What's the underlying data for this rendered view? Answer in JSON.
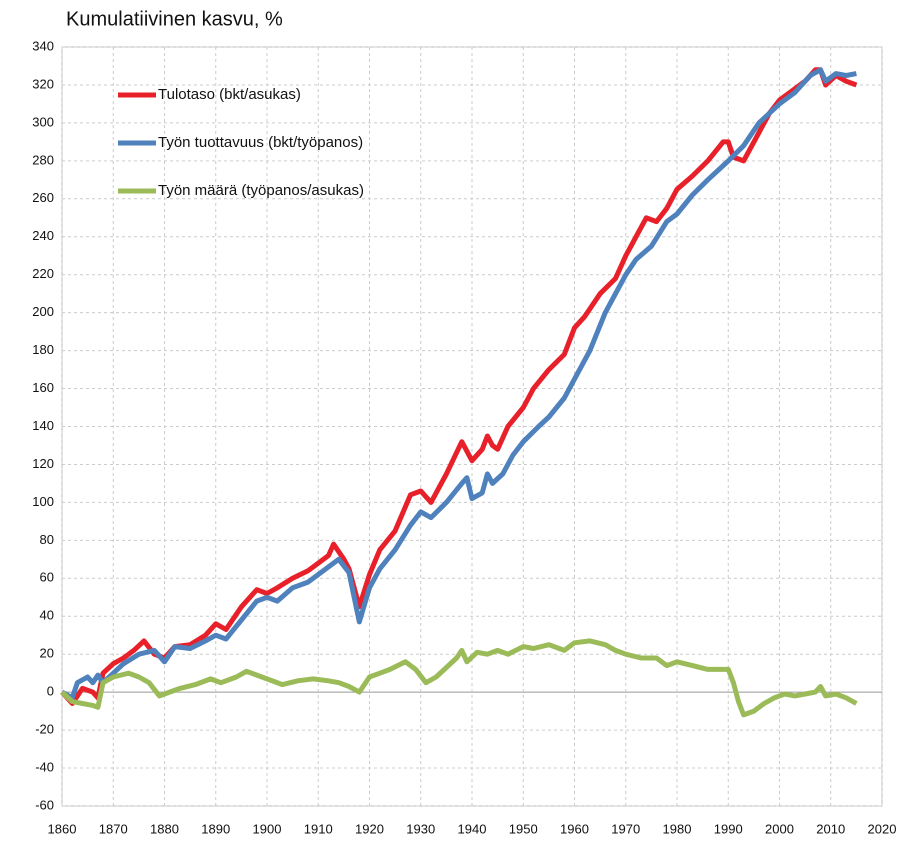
{
  "chart_data": {
    "type": "line",
    "title": "Kumulatiivinen kasvu, %",
    "xlim": [
      1860,
      2020
    ],
    "xticks": [
      1860,
      1870,
      1880,
      1890,
      1900,
      1910,
      1920,
      1930,
      1940,
      1950,
      1960,
      1970,
      1980,
      1990,
      2000,
      2010,
      2020
    ],
    "ylim": [
      -60,
      340
    ],
    "yticks": [
      -60,
      -40,
      -20,
      0,
      20,
      40,
      60,
      80,
      100,
      120,
      140,
      160,
      180,
      200,
      220,
      240,
      260,
      280,
      300,
      320,
      340
    ],
    "grid": true,
    "legend": "upper left",
    "series": [
      {
        "name": "Tulotaso (bkt/asukas)",
        "color": "#e8202a",
        "x": [
          1860,
          1862,
          1864,
          1866,
          1867,
          1868,
          1870,
          1872,
          1874,
          1876,
          1878,
          1880,
          1882,
          1885,
          1888,
          1890,
          1892,
          1895,
          1898,
          1900,
          1902,
          1905,
          1908,
          1910,
          1912,
          1913,
          1915,
          1916,
          1918,
          1920,
          1922,
          1925,
          1928,
          1930,
          1932,
          1935,
          1938,
          1940,
          1942,
          1943,
          1944,
          1945,
          1947,
          1950,
          1952,
          1955,
          1958,
          1960,
          1962,
          1965,
          1968,
          1970,
          1972,
          1974,
          1976,
          1978,
          1980,
          1983,
          1986,
          1989,
          1990,
          1991,
          1993,
          1995,
          1998,
          2000,
          2003,
          2005,
          2007,
          2008,
          2009,
          2011,
          2013,
          2015
        ],
        "values": [
          0,
          -6,
          2,
          0,
          -3,
          10,
          15,
          18,
          22,
          27,
          20,
          18,
          24,
          25,
          30,
          36,
          33,
          45,
          54,
          52,
          55,
          60,
          64,
          68,
          72,
          78,
          70,
          65,
          45,
          62,
          75,
          85,
          104,
          106,
          100,
          115,
          132,
          122,
          128,
          135,
          130,
          128,
          140,
          150,
          160,
          170,
          178,
          192,
          198,
          210,
          218,
          230,
          240,
          250,
          248,
          255,
          265,
          272,
          280,
          290,
          290,
          282,
          280,
          290,
          305,
          312,
          318,
          322,
          328,
          328,
          320,
          325,
          322,
          320
        ]
      },
      {
        "name": "Työn tuottavuus (bkt/työpanos)",
        "color": "#4f81bd",
        "x": [
          1860,
          1862,
          1863,
          1865,
          1866,
          1867,
          1868,
          1870,
          1872,
          1875,
          1878,
          1880,
          1882,
          1885,
          1888,
          1890,
          1892,
          1895,
          1898,
          1900,
          1902,
          1905,
          1908,
          1910,
          1912,
          1914,
          1916,
          1918,
          1920,
          1922,
          1925,
          1928,
          1930,
          1932,
          1935,
          1938,
          1939,
          1940,
          1942,
          1943,
          1944,
          1946,
          1948,
          1950,
          1953,
          1955,
          1958,
          1960,
          1963,
          1966,
          1970,
          1972,
          1975,
          1978,
          1980,
          1983,
          1986,
          1990,
          1993,
          1996,
          2000,
          2003,
          2006,
          2008,
          2009,
          2011,
          2013,
          2015
        ],
        "values": [
          0,
          -3,
          5,
          8,
          5,
          9,
          5,
          10,
          15,
          20,
          22,
          16,
          24,
          23,
          27,
          30,
          28,
          38,
          48,
          50,
          48,
          55,
          58,
          62,
          66,
          70,
          63,
          37,
          55,
          65,
          75,
          88,
          95,
          92,
          100,
          110,
          113,
          102,
          105,
          115,
          110,
          115,
          125,
          132,
          140,
          145,
          155,
          165,
          180,
          200,
          220,
          228,
          235,
          248,
          252,
          262,
          270,
          280,
          288,
          300,
          310,
          316,
          325,
          328,
          322,
          326,
          325,
          326
        ]
      },
      {
        "name": "Työn määrä (työpanos/asukas)",
        "color": "#9bbb59",
        "x": [
          1860,
          1862,
          1864,
          1866,
          1867,
          1868,
          1870,
          1873,
          1875,
          1877,
          1879,
          1881,
          1883,
          1886,
          1889,
          1891,
          1894,
          1896,
          1898,
          1900,
          1903,
          1906,
          1909,
          1912,
          1914,
          1916,
          1918,
          1920,
          1922,
          1924,
          1927,
          1929,
          1931,
          1933,
          1935,
          1937,
          1938,
          1939,
          1941,
          1943,
          1945,
          1947,
          1950,
          1952,
          1955,
          1958,
          1960,
          1963,
          1966,
          1968,
          1970,
          1973,
          1976,
          1978,
          1980,
          1983,
          1986,
          1988,
          1990,
          1991,
          1992,
          1993,
          1995,
          1997,
          1999,
          2001,
          2003,
          2005,
          2007,
          2008,
          2009,
          2011,
          2013,
          2015
        ],
        "values": [
          0,
          -5,
          -6,
          -7,
          -8,
          5,
          8,
          10,
          8,
          5,
          -2,
          0,
          2,
          4,
          7,
          5,
          8,
          11,
          9,
          7,
          4,
          6,
          7,
          6,
          5,
          3,
          0,
          8,
          10,
          12,
          16,
          12,
          5,
          8,
          13,
          18,
          22,
          16,
          21,
          20,
          22,
          20,
          24,
          23,
          25,
          22,
          26,
          27,
          25,
          22,
          20,
          18,
          18,
          14,
          16,
          14,
          12,
          12,
          12,
          5,
          -5,
          -12,
          -10,
          -6,
          -3,
          -1,
          -2,
          -1,
          0,
          3,
          -2,
          -1,
          -3,
          -6
        ]
      }
    ]
  }
}
